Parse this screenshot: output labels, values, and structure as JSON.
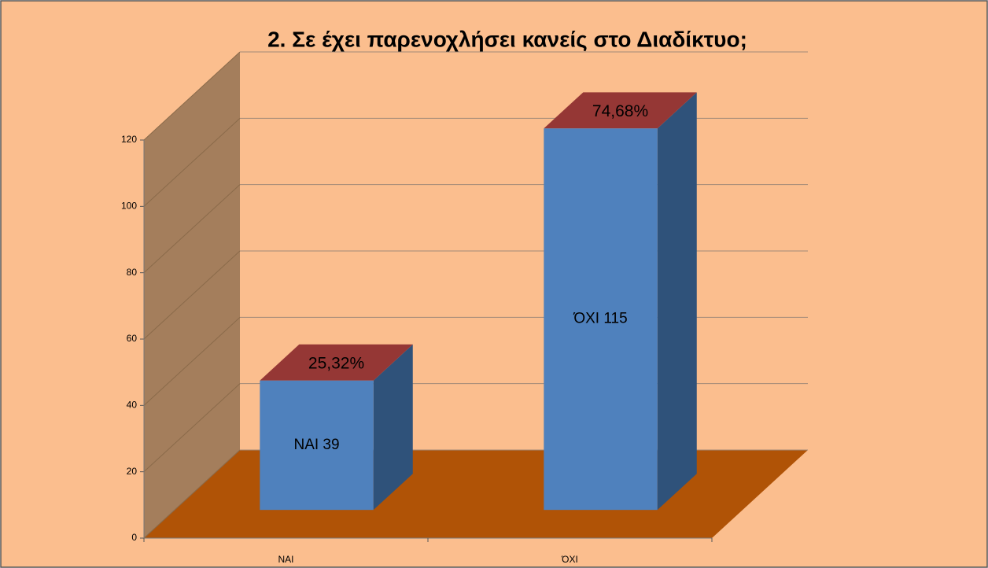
{
  "chart_data": {
    "type": "bar3d",
    "title": "2. Σε έχει παρενοχλήσει κανείς στο Διαδίκτυο;",
    "categories": [
      "ΝΑΙ",
      "ΌΧΙ"
    ],
    "values": [
      39,
      115
    ],
    "value_labels": [
      "ΝΑΙ 39",
      "ΌΧΙ 115"
    ],
    "percent_labels": [
      "25,32%",
      "74,68%"
    ],
    "color": "#4f81bd",
    "ylim": [
      0,
      120
    ],
    "yticks": [
      0,
      20,
      40,
      60,
      80,
      100,
      120
    ],
    "grid": true
  }
}
